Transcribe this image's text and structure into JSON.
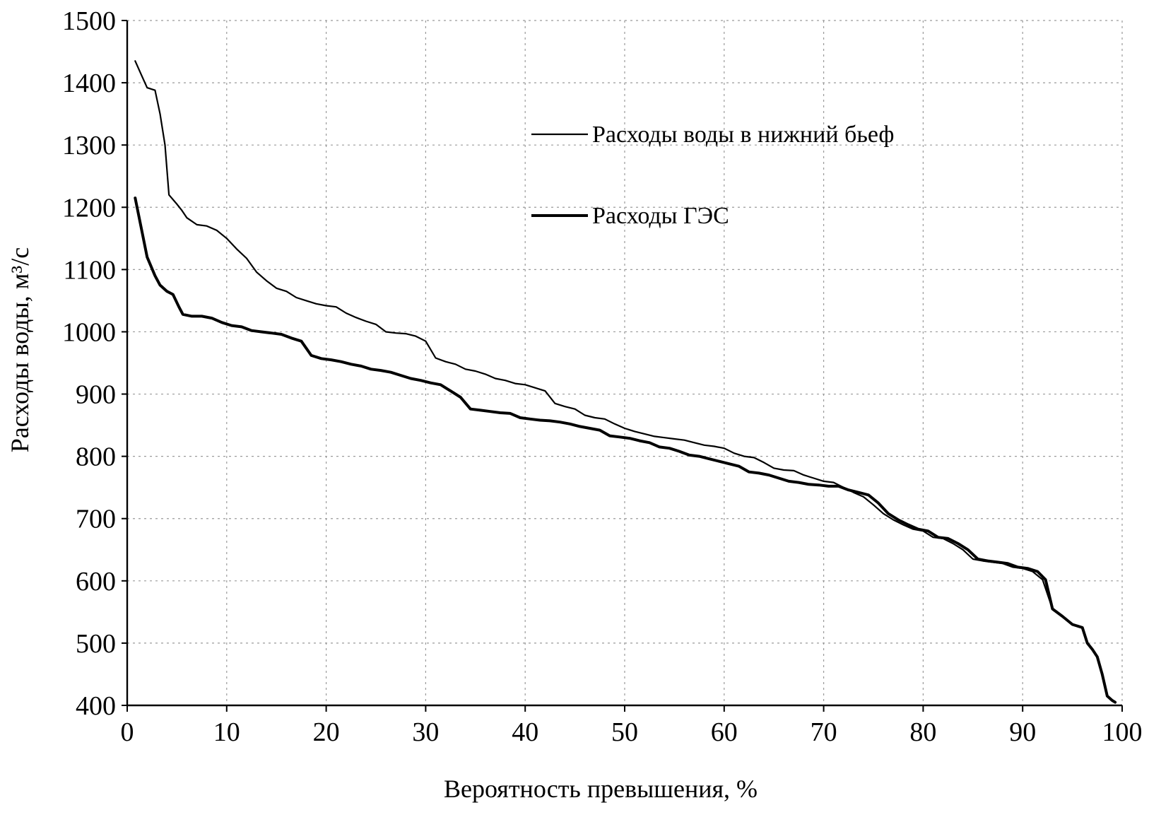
{
  "chart_data": {
    "type": "line",
    "xlabel": "Вероятность превышения,  %",
    "ylabel": "Расходы воды, м³/с",
    "xlim": [
      0,
      100
    ],
    "ylim": [
      400,
      1500
    ],
    "x_ticks": [
      "0",
      "10",
      "20",
      "30",
      "40",
      "50",
      "60",
      "70",
      "80",
      "90",
      "100"
    ],
    "y_ticks": [
      "400",
      "500",
      "600",
      "700",
      "800",
      "900",
      "1000",
      "1100",
      "1200",
      "1300",
      "1400",
      "1500"
    ],
    "grid": true,
    "legend_position": "upper-middle",
    "series": [
      {
        "name": "Расходы воды в нижний бьеф",
        "color": "#000000",
        "width": 2.2,
        "points": [
          [
            0.8,
            1435
          ],
          [
            1.5,
            1410
          ],
          [
            2,
            1392
          ],
          [
            2.8,
            1388
          ],
          [
            3.3,
            1350
          ],
          [
            3.8,
            1300
          ],
          [
            4.2,
            1220
          ],
          [
            5,
            1205
          ],
          [
            5.5,
            1195
          ],
          [
            6,
            1183
          ],
          [
            7,
            1172
          ],
          [
            8,
            1170
          ],
          [
            9,
            1163
          ],
          [
            10,
            1150
          ],
          [
            11,
            1133
          ],
          [
            12,
            1118
          ],
          [
            13,
            1096
          ],
          [
            14,
            1082
          ],
          [
            15,
            1070
          ],
          [
            16,
            1065
          ],
          [
            17,
            1055
          ],
          [
            18,
            1050
          ],
          [
            19,
            1045
          ],
          [
            20,
            1042
          ],
          [
            21,
            1040
          ],
          [
            22,
            1030
          ],
          [
            23,
            1023
          ],
          [
            24,
            1017
          ],
          [
            25,
            1012
          ],
          [
            26,
            1000
          ],
          [
            27,
            998
          ],
          [
            28,
            997
          ],
          [
            29,
            993
          ],
          [
            30,
            985
          ],
          [
            31,
            958
          ],
          [
            32,
            952
          ],
          [
            33,
            948
          ],
          [
            34,
            940
          ],
          [
            35,
            937
          ],
          [
            36,
            932
          ],
          [
            37,
            925
          ],
          [
            38,
            922
          ],
          [
            39,
            917
          ],
          [
            40,
            915
          ],
          [
            41,
            910
          ],
          [
            42,
            905
          ],
          [
            43,
            885
          ],
          [
            44,
            880
          ],
          [
            45,
            876
          ],
          [
            46,
            866
          ],
          [
            47,
            862
          ],
          [
            48,
            860
          ],
          [
            49,
            852
          ],
          [
            50,
            845
          ],
          [
            51,
            840
          ],
          [
            52,
            836
          ],
          [
            53,
            832
          ],
          [
            54,
            830
          ],
          [
            55,
            828
          ],
          [
            56,
            826
          ],
          [
            57,
            822
          ],
          [
            58,
            818
          ],
          [
            59,
            816
          ],
          [
            60,
            813
          ],
          [
            61,
            805
          ],
          [
            62,
            800
          ],
          [
            63,
            798
          ],
          [
            64,
            790
          ],
          [
            65,
            781
          ],
          [
            66,
            778
          ],
          [
            67,
            777
          ],
          [
            68,
            770
          ],
          [
            69,
            765
          ],
          [
            70,
            760
          ],
          [
            71,
            758
          ],
          [
            72,
            750
          ],
          [
            73,
            742
          ],
          [
            74,
            735
          ],
          [
            75,
            722
          ],
          [
            76,
            708
          ],
          [
            77,
            698
          ],
          [
            78,
            690
          ],
          [
            79,
            683
          ],
          [
            80,
            680
          ],
          [
            81,
            670
          ],
          [
            82,
            668
          ],
          [
            83,
            660
          ],
          [
            84,
            650
          ],
          [
            85,
            635
          ],
          [
            86,
            632
          ],
          [
            87,
            630
          ],
          [
            88,
            628
          ],
          [
            89,
            622
          ],
          [
            90,
            620
          ],
          [
            91,
            615
          ],
          [
            92,
            602
          ],
          [
            93,
            555
          ],
          [
            94,
            543
          ],
          [
            95,
            530
          ],
          [
            96,
            525
          ],
          [
            96.5,
            500
          ],
          [
            97,
            490
          ],
          [
            97.5,
            478
          ],
          [
            98,
            450
          ],
          [
            98.5,
            415
          ],
          [
            99,
            408
          ],
          [
            99.3,
            405
          ]
        ]
      },
      {
        "name": "Расходы ГЭС",
        "color": "#000000",
        "width": 4,
        "points": [
          [
            0.8,
            1215
          ],
          [
            1.5,
            1160
          ],
          [
            2,
            1120
          ],
          [
            2.8,
            1090
          ],
          [
            3.3,
            1075
          ],
          [
            4,
            1065
          ],
          [
            4.6,
            1060
          ],
          [
            5.2,
            1040
          ],
          [
            5.6,
            1028
          ],
          [
            6.5,
            1025
          ],
          [
            7.5,
            1025
          ],
          [
            8.5,
            1022
          ],
          [
            9.5,
            1015
          ],
          [
            10.5,
            1010
          ],
          [
            11.5,
            1008
          ],
          [
            12.5,
            1002
          ],
          [
            13.5,
            1000
          ],
          [
            14.5,
            998
          ],
          [
            15.5,
            996
          ],
          [
            16.5,
            990
          ],
          [
            17.5,
            985
          ],
          [
            18.5,
            962
          ],
          [
            19.5,
            957
          ],
          [
            20.5,
            955
          ],
          [
            21.5,
            952
          ],
          [
            22.5,
            948
          ],
          [
            23.5,
            945
          ],
          [
            24.5,
            940
          ],
          [
            25.5,
            938
          ],
          [
            26.5,
            935
          ],
          [
            27.5,
            930
          ],
          [
            28.5,
            925
          ],
          [
            29.5,
            922
          ],
          [
            30.5,
            918
          ],
          [
            31.5,
            915
          ],
          [
            32.5,
            905
          ],
          [
            33.5,
            895
          ],
          [
            34.5,
            876
          ],
          [
            35.5,
            874
          ],
          [
            36.5,
            872
          ],
          [
            37.5,
            870
          ],
          [
            38.5,
            869
          ],
          [
            39.5,
            862
          ],
          [
            40.5,
            860
          ],
          [
            41.5,
            858
          ],
          [
            42.5,
            857
          ],
          [
            43.5,
            855
          ],
          [
            44.5,
            852
          ],
          [
            45.5,
            848
          ],
          [
            46.5,
            845
          ],
          [
            47.5,
            842
          ],
          [
            48.5,
            833
          ],
          [
            49.5,
            831
          ],
          [
            50.5,
            829
          ],
          [
            51.5,
            825
          ],
          [
            52.5,
            822
          ],
          [
            53.5,
            815
          ],
          [
            54.5,
            813
          ],
          [
            55.5,
            808
          ],
          [
            56.5,
            802
          ],
          [
            57.5,
            800
          ],
          [
            58.5,
            796
          ],
          [
            59.5,
            792
          ],
          [
            60.5,
            788
          ],
          [
            61.5,
            784
          ],
          [
            62.5,
            775
          ],
          [
            63.5,
            773
          ],
          [
            64.5,
            770
          ],
          [
            65.5,
            765
          ],
          [
            66.5,
            760
          ],
          [
            67.5,
            758
          ],
          [
            68.5,
            755
          ],
          [
            69.5,
            754
          ],
          [
            70.5,
            752
          ],
          [
            71.5,
            752
          ],
          [
            72.5,
            746
          ],
          [
            73.5,
            742
          ],
          [
            74.5,
            738
          ],
          [
            75.5,
            725
          ],
          [
            76.5,
            708
          ],
          [
            77.5,
            698
          ],
          [
            78.5,
            690
          ],
          [
            79.5,
            683
          ],
          [
            80.5,
            680
          ],
          [
            81.5,
            670
          ],
          [
            82.5,
            668
          ],
          [
            83.5,
            660
          ],
          [
            84.5,
            650
          ],
          [
            85.5,
            635
          ],
          [
            86.5,
            632
          ],
          [
            87.5,
            630
          ],
          [
            88.5,
            628
          ],
          [
            89.5,
            622
          ],
          [
            90.5,
            620
          ],
          [
            91.5,
            615
          ],
          [
            92.3,
            602
          ],
          [
            93,
            555
          ],
          [
            94,
            543
          ],
          [
            95,
            530
          ],
          [
            96,
            525
          ],
          [
            96.5,
            500
          ],
          [
            97,
            490
          ],
          [
            97.5,
            478
          ],
          [
            98,
            450
          ],
          [
            98.5,
            415
          ],
          [
            99,
            408
          ],
          [
            99.3,
            405
          ]
        ]
      }
    ]
  }
}
